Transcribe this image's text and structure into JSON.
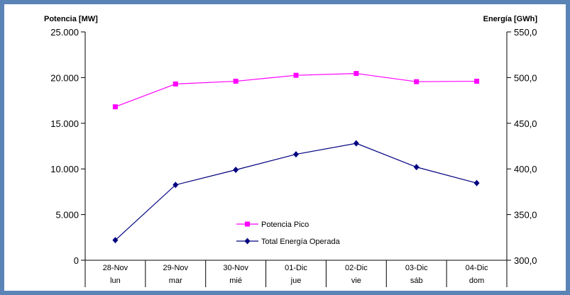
{
  "chart_data": {
    "type": "line",
    "y_left_label": "Potencia [MW]",
    "y_right_label": "Energía [GWh]",
    "categories": [
      "28-Nov",
      "29-Nov",
      "30-Nov",
      "01-Dic",
      "02-Dic",
      "03-Dic",
      "04-Dic"
    ],
    "day_labels": [
      "lun",
      "mar",
      "mié",
      "jue",
      "vie",
      "sáb",
      "dom"
    ],
    "y_left": {
      "min": 0,
      "max": 25000,
      "ticks": [
        "0",
        "5.000",
        "10.000",
        "15.000",
        "20.000",
        "25.000"
      ]
    },
    "y_right": {
      "min": 300,
      "max": 550,
      "ticks": [
        "300,0",
        "350,0",
        "400,0",
        "450,0",
        "500,0",
        "550,0"
      ]
    },
    "series": [
      {
        "name": "Potencia Pico",
        "axis": "left",
        "color": "#ff00ff",
        "marker": "square",
        "values": [
          16800,
          19300,
          19600,
          20250,
          20450,
          19550,
          19600
        ]
      },
      {
        "name": "Total Energía Operada",
        "axis": "right",
        "color": "#000080",
        "marker": "diamond",
        "values": [
          322,
          382.5,
          399,
          416,
          428,
          402,
          384.5
        ]
      }
    ],
    "legend_position": "bottom-center",
    "grid": false
  }
}
